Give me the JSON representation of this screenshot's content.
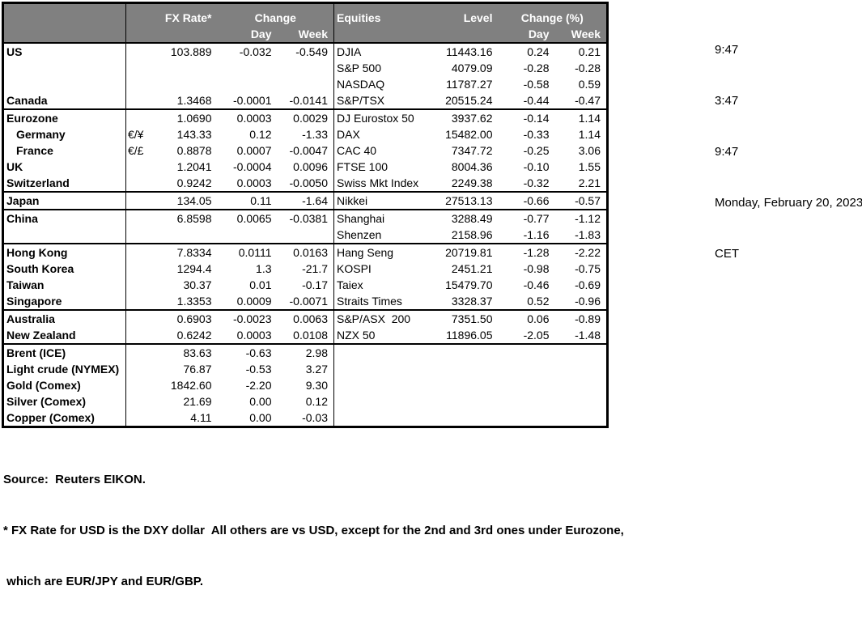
{
  "timestamps": [
    "9:47",
    "3:47",
    "9:47",
    "Monday, February 20, 2023",
    "CET"
  ],
  "fx_table_header": {
    "rate": "FX Rate*",
    "change": "Change",
    "day": "Day",
    "week": "Week"
  },
  "equities_table_header": {
    "name": "Equities",
    "level": "Level",
    "change": "Change (%)",
    "day": "Day",
    "week": "Week"
  },
  "rows": [
    {
      "name": "US",
      "pair": "",
      "rate": "103.889",
      "day": "-0.032",
      "week": "-0.549",
      "eq": "DJIA",
      "level": "11443.16",
      "eday": "0.24",
      "eweek": "0.21",
      "sep": false,
      "indent": false
    },
    {
      "name": "",
      "pair": "",
      "rate": "",
      "day": "",
      "week": "",
      "eq": "S&P 500",
      "level": "4079.09",
      "eday": "-0.28",
      "eweek": "-0.28",
      "sep": false,
      "indent": false
    },
    {
      "name": "",
      "pair": "",
      "rate": "",
      "day": "",
      "week": "",
      "eq": "NASDAQ",
      "level": "11787.27",
      "eday": "-0.58",
      "eweek": "0.59",
      "sep": false,
      "indent": false
    },
    {
      "name": "Canada",
      "pair": "",
      "rate": "1.3468",
      "day": "-0.0001",
      "week": "-0.0141",
      "eq": "S&P/TSX",
      "level": "20515.24",
      "eday": "-0.44",
      "eweek": "-0.47",
      "sep": false,
      "indent": false
    },
    {
      "name": "Eurozone",
      "pair": "",
      "rate": "1.0690",
      "day": "0.0003",
      "week": "0.0029",
      "eq": "DJ Eurostox 50",
      "level": "3937.62",
      "eday": "-0.14",
      "eweek": "1.14",
      "sep": true,
      "indent": false
    },
    {
      "name": "Germany",
      "pair": "€/¥",
      "rate": "143.33",
      "day": "0.12",
      "week": "-1.33",
      "eq": "DAX",
      "level": "15482.00",
      "eday": "-0.33",
      "eweek": "1.14",
      "sep": false,
      "indent": true
    },
    {
      "name": "France",
      "pair": "€/£",
      "rate": "0.8878",
      "day": "0.0007",
      "week": "-0.0047",
      "eq": "CAC 40",
      "level": "7347.72",
      "eday": "-0.25",
      "eweek": "3.06",
      "sep": false,
      "indent": true
    },
    {
      "name": "UK",
      "pair": "",
      "rate": "1.2041",
      "day": "-0.0004",
      "week": "0.0096",
      "eq": "FTSE 100",
      "level": "8004.36",
      "eday": "-0.10",
      "eweek": "1.55",
      "sep": false,
      "indent": false
    },
    {
      "name": "Switzerland",
      "pair": "",
      "rate": "0.9242",
      "day": "0.0003",
      "week": "-0.0050",
      "eq": "Swiss Mkt Index",
      "level": "2249.38",
      "eday": "-0.32",
      "eweek": "2.21",
      "sep": false,
      "indent": false
    },
    {
      "name": "Japan",
      "pair": "",
      "rate": "134.05",
      "day": "0.11",
      "week": "-1.64",
      "eq": "Nikkei",
      "level": "27513.13",
      "eday": "-0.66",
      "eweek": "-0.57",
      "sep": true,
      "indent": false
    },
    {
      "name": "China",
      "pair": "",
      "rate": "6.8598",
      "day": "0.0065",
      "week": "-0.0381",
      "eq": "Shanghai",
      "level": "3288.49",
      "eday": "-0.77",
      "eweek": "-1.12",
      "sep": true,
      "indent": false
    },
    {
      "name": "",
      "pair": "",
      "rate": "",
      "day": "",
      "week": "",
      "eq": "Shenzen",
      "level": "2158.96",
      "eday": "-1.16",
      "eweek": "-1.83",
      "sep": false,
      "indent": false
    },
    {
      "name": "Hong Kong",
      "pair": "",
      "rate": "7.8334",
      "day": "0.0111",
      "week": "0.0163",
      "eq": "Hang Seng",
      "level": "20719.81",
      "eday": "-1.28",
      "eweek": "-2.22",
      "sep": true,
      "indent": false
    },
    {
      "name": "South Korea",
      "pair": "",
      "rate": "1294.4",
      "day": "1.3",
      "week": "-21.7",
      "eq": "KOSPI",
      "level": "2451.21",
      "eday": "-0.98",
      "eweek": "-0.75",
      "sep": false,
      "indent": false
    },
    {
      "name": "Taiwan",
      "pair": "",
      "rate": "30.37",
      "day": "0.01",
      "week": "-0.17",
      "eq": "Taiex",
      "level": "15479.70",
      "eday": "-0.46",
      "eweek": "-0.69",
      "sep": false,
      "indent": false
    },
    {
      "name": "Singapore",
      "pair": "",
      "rate": "1.3353",
      "day": "0.0009",
      "week": "-0.0071",
      "eq": "Straits Times",
      "level": "3328.37",
      "eday": "0.52",
      "eweek": "-0.96",
      "sep": false,
      "indent": false
    },
    {
      "name": "Australia",
      "pair": "",
      "rate": "0.6903",
      "day": "-0.0023",
      "week": "0.0063",
      "eq": "S&P/ASX  200",
      "level": "7351.50",
      "eday": "0.06",
      "eweek": "-0.89",
      "sep": true,
      "indent": false
    },
    {
      "name": "New Zealand",
      "pair": "",
      "rate": "0.6242",
      "day": "0.0003",
      "week": "0.0108",
      "eq": "NZX 50",
      "level": "11896.05",
      "eday": "-2.05",
      "eweek": "-1.48",
      "sep": false,
      "indent": false
    },
    {
      "name": "Brent (ICE)",
      "pair": "",
      "rate": "83.63",
      "day": "-0.63",
      "week": "2.98",
      "eq": "",
      "level": "",
      "eday": "",
      "eweek": "",
      "sep": true,
      "indent": false
    },
    {
      "name": "Light crude (NYMEX)",
      "pair": "",
      "rate": "76.87",
      "day": "-0.53",
      "week": "3.27",
      "eq": "",
      "level": "",
      "eday": "",
      "eweek": "",
      "sep": false,
      "indent": false
    },
    {
      "name": "Gold (Comex)",
      "pair": "",
      "rate": "1842.60",
      "day": "-2.20",
      "week": "9.30",
      "eq": "",
      "level": "",
      "eday": "",
      "eweek": "",
      "sep": false,
      "indent": false
    },
    {
      "name": "Silver (Comex)",
      "pair": "",
      "rate": "21.69",
      "day": "0.00",
      "week": "0.12",
      "eq": "",
      "level": "",
      "eday": "",
      "eweek": "",
      "sep": false,
      "indent": false
    },
    {
      "name": "Copper (Comex)",
      "pair": "",
      "rate": "4.11",
      "day": "0.00",
      "week": "-0.03",
      "eq": "",
      "level": "",
      "eday": "",
      "eweek": "",
      "sep": false,
      "indent": false
    }
  ],
  "footer": {
    "source": "Source:  Reuters EIKON.",
    "note1": "* FX Rate for USD is the DXY dollar  All others are vs USD, except for the 2nd and 3rd ones under Eurozone,",
    "note2": " which are EUR/JPY and EUR/GBP."
  },
  "colors": {
    "header_bg": "#808080",
    "header_text": "#ffffff",
    "grid": "#000000",
    "text": "#000000"
  }
}
